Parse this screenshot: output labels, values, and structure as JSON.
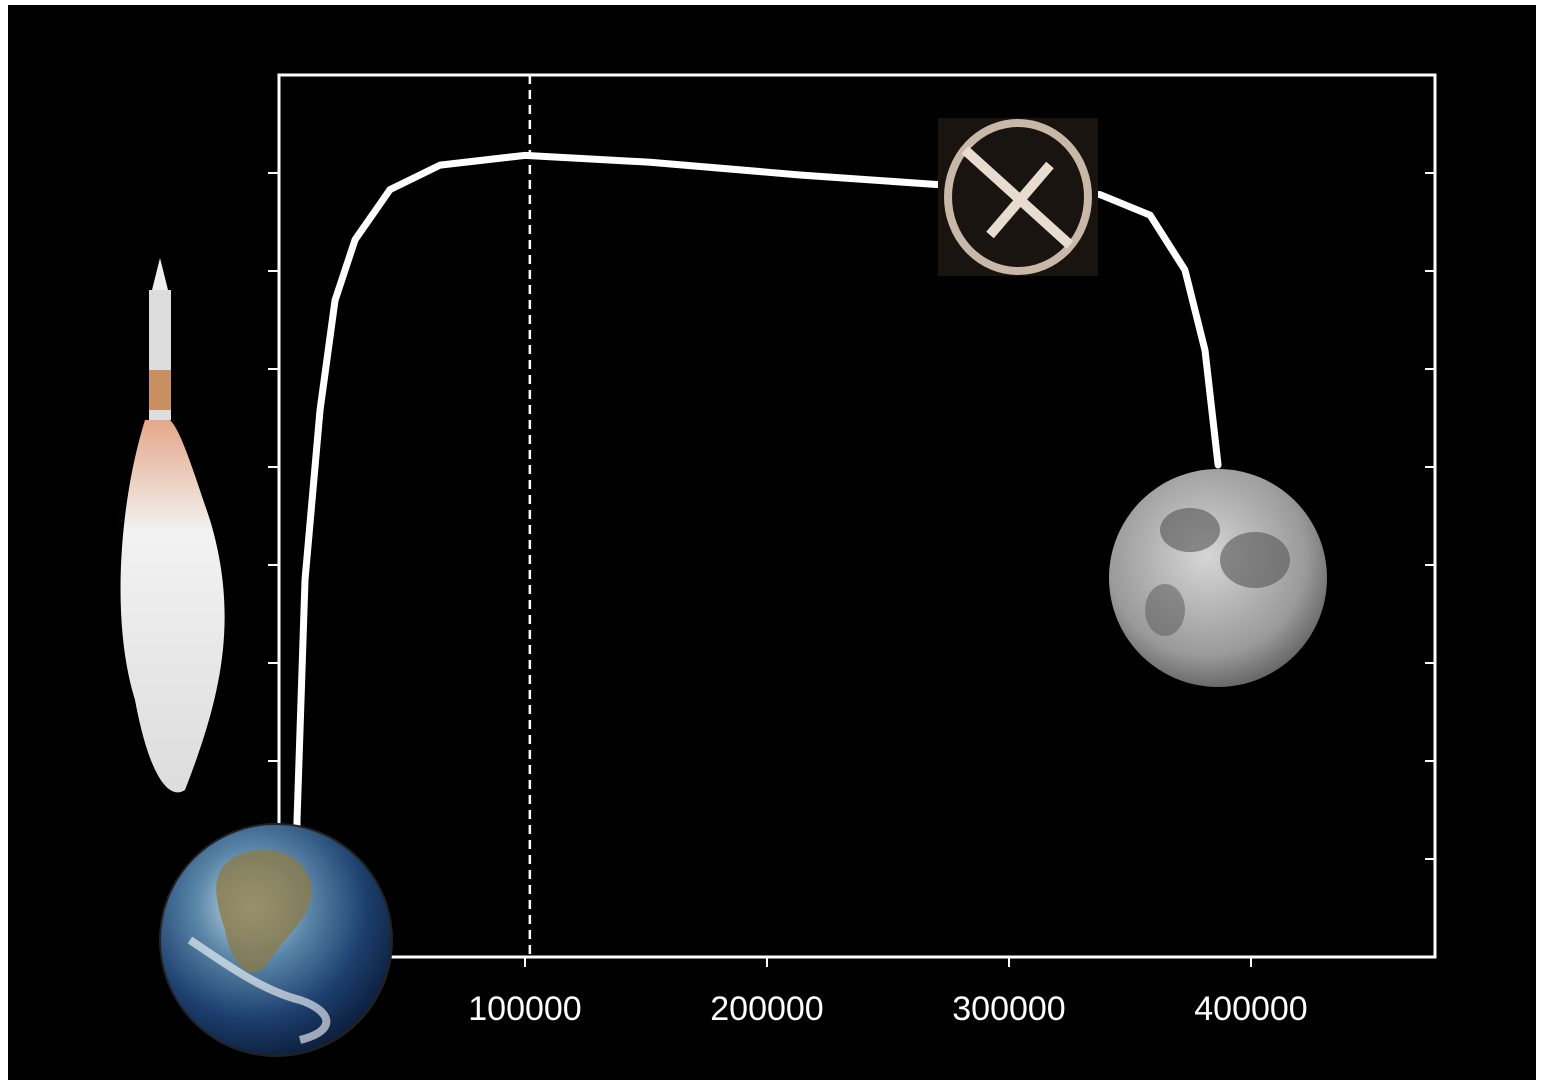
{
  "chart_data": {
    "type": "line",
    "x": [
      5000,
      5800,
      9100,
      15300,
      21500,
      29800,
      44200,
      64900,
      100000,
      151700,
      213600,
      271500,
      337600,
      358300,
      372700,
      381000,
      386400
    ],
    "series": [
      {
        "color": "#ffffff",
        "values": [
          0,
          1.4,
          3.85,
          5.58,
          6.7,
          7.32,
          7.83,
          8.08,
          8.18,
          8.11,
          7.98,
          7.88,
          7.78,
          7.57,
          7.01,
          6.19,
          5.02
        ]
      }
    ],
    "xlim": [
      0,
      475000
    ],
    "xticks": [
      100000,
      200000,
      300000,
      400000
    ],
    "ylim": [
      0,
      9
    ],
    "yticks": [
      1,
      2,
      3,
      4,
      5,
      6,
      7,
      8
    ],
    "reference_x": 102000
  }
}
